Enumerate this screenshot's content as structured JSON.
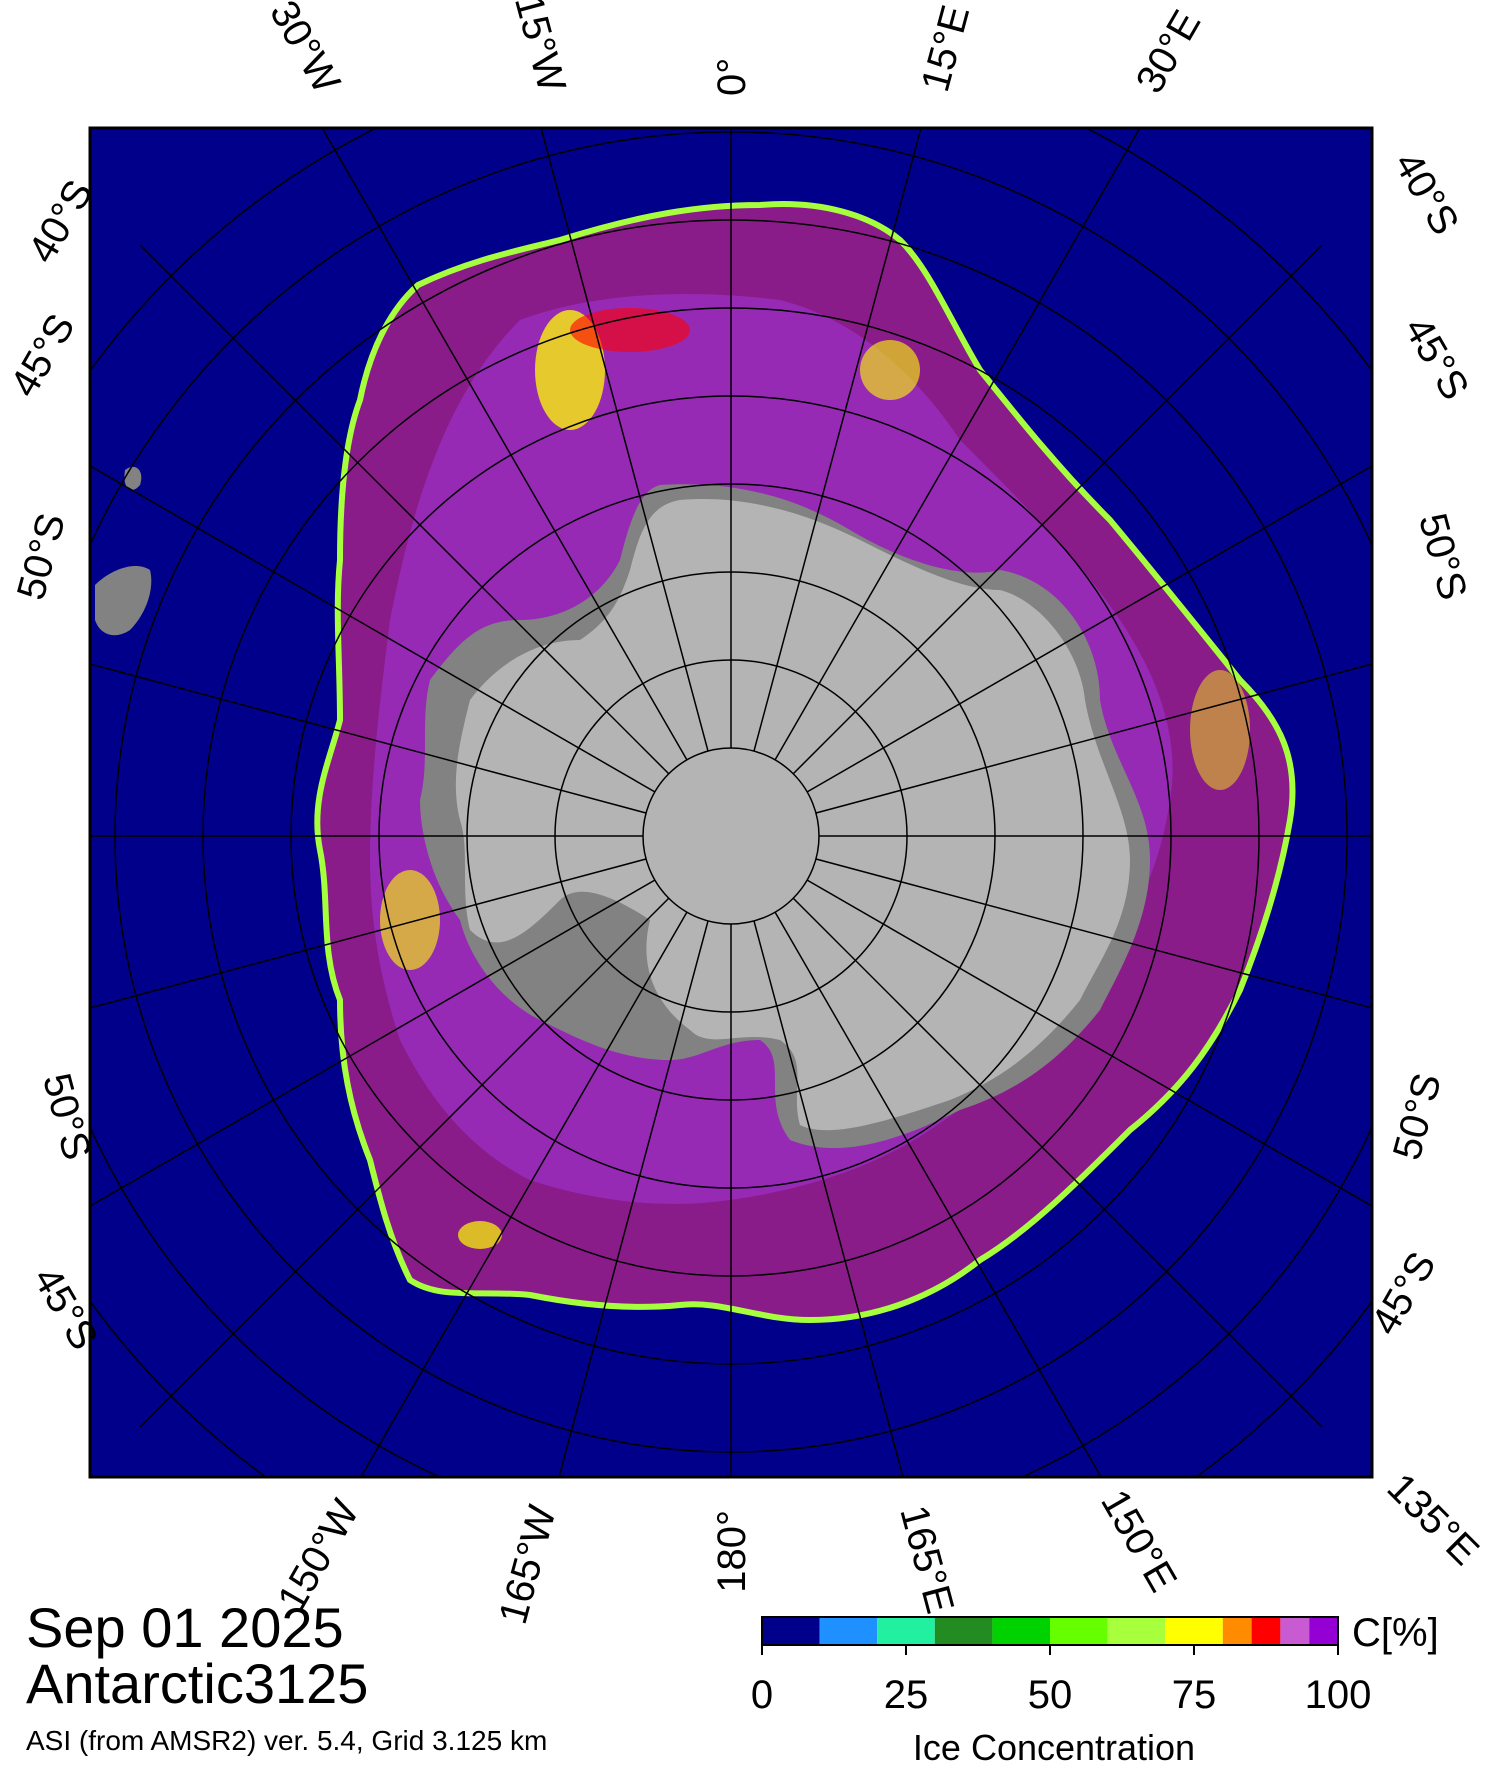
{
  "map": {
    "title_date": "Sep 01 2025",
    "title_product": "Antarctic3125",
    "source_note": "ASI (from AMSR2) ver. 5.4,  Grid 3.125 km",
    "colors": {
      "ocean": "#00008b",
      "continent": "#b4b4b4",
      "ice_shelf": "#828282",
      "frame": "#000000",
      "graticule": "#000000"
    },
    "graticule_labels": {
      "top": [
        "30°W",
        "15°W",
        "0°",
        "15°E",
        "30°E"
      ],
      "bottom": [
        "150°W",
        "165°W",
        "180°",
        "165°E",
        "150°E",
        "135°E"
      ],
      "left": [
        "40°S",
        "45°S",
        "50°S",
        "50°S",
        "45°S"
      ],
      "right": [
        "40°S",
        "45°S",
        "50°S",
        "50°S",
        "45°S"
      ]
    }
  },
  "colorbar": {
    "unit_label": "C[%]",
    "title": "Ice Concentration",
    "ticks": [
      "0",
      "25",
      "50",
      "75",
      "100"
    ],
    "range": [
      0,
      100
    ],
    "bins": [
      {
        "from": 0,
        "to": 10,
        "color": "#00008b"
      },
      {
        "from": 10,
        "to": 20,
        "color": "#1e90ff"
      },
      {
        "from": 20,
        "to": 30,
        "color": "#20f0a0"
      },
      {
        "from": 30,
        "to": 40,
        "color": "#228b22"
      },
      {
        "from": 40,
        "to": 50,
        "color": "#00d200"
      },
      {
        "from": 50,
        "to": 60,
        "color": "#66ff00"
      },
      {
        "from": 60,
        "to": 70,
        "color": "#a8ff3c"
      },
      {
        "from": 70,
        "to": 80,
        "color": "#ffff00"
      },
      {
        "from": 80,
        "to": 85,
        "color": "#ff8c00"
      },
      {
        "from": 85,
        "to": 90,
        "color": "#ff0000"
      },
      {
        "from": 90,
        "to": 95,
        "color": "#c85ad2"
      },
      {
        "from": 95,
        "to": 100,
        "color": "#9400d3"
      }
    ]
  }
}
